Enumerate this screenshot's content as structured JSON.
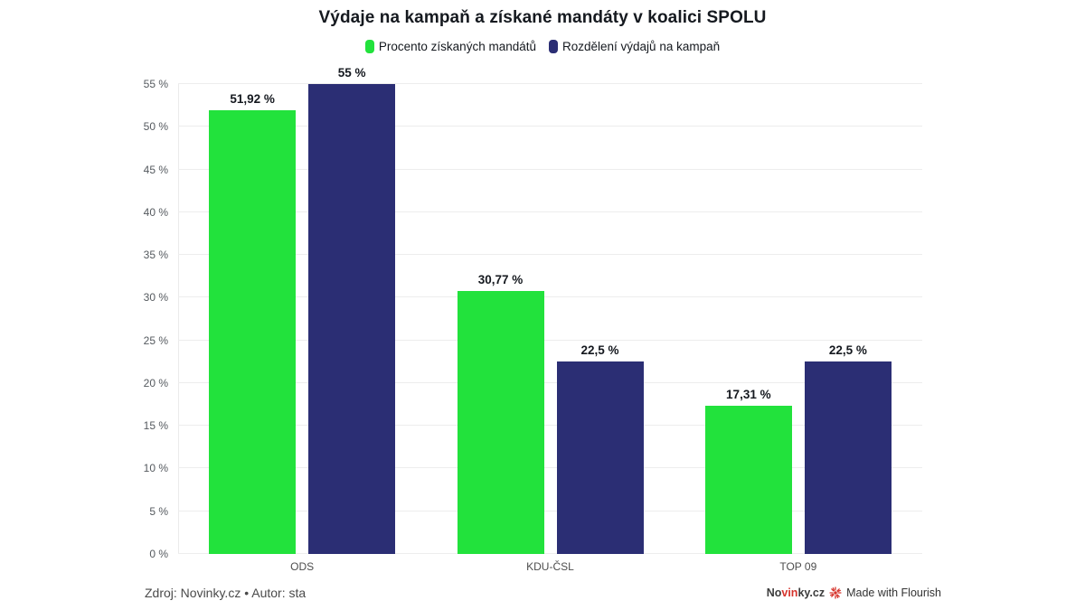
{
  "header": {
    "title": "Výdaje na kampaň a získané mandáty v koalici SPOLU"
  },
  "chart_data": {
    "type": "bar",
    "title": "Výdaje na kampaň a získané mandáty v koalici SPOLU",
    "categories": [
      "ODS",
      "KDU-ČSL",
      "TOP 09"
    ],
    "series": [
      {
        "name": "Procento získaných mandátů",
        "color": "#22e23c",
        "values": [
          51.92,
          30.77,
          17.31
        ],
        "labels": [
          "51,92 %",
          "30,77 %",
          "17,31 %"
        ]
      },
      {
        "name": "Rozdělení výdajů na kampaň",
        "color": "#2b2e74",
        "values": [
          55,
          22.5,
          22.5
        ],
        "labels": [
          "55 %",
          "22,5 %",
          "22,5 %"
        ]
      }
    ],
    "xlabel": "",
    "ylabel": "",
    "ylim": [
      0,
      55
    ],
    "ytick_step": 5,
    "ytick_suffix": " %",
    "grid": true,
    "legend_position": "top"
  },
  "footer": {
    "source": "Zdroj: Novinky.cz • Autor: sta",
    "brand": {
      "prefix": "No",
      "highlight": "vin",
      "suffix": "ky.cz"
    },
    "credit": "Made with Flourish"
  },
  "colors": {
    "background": "#ffffff",
    "gridline": "#ededed",
    "title_text": "#15191f",
    "axis_text": "#555a5f",
    "category_text": "#4d4d4d",
    "flourish_red": "#d6342c"
  }
}
